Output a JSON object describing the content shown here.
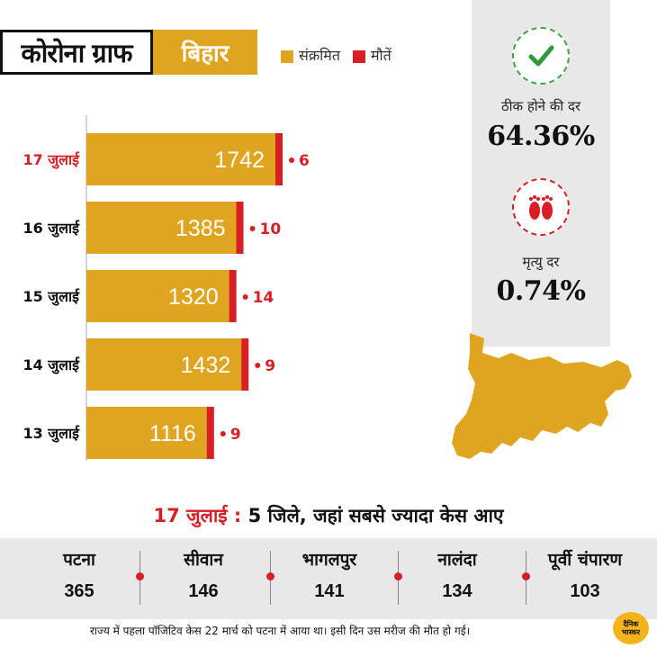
{
  "header": {
    "title": "कोरोना ग्राफ",
    "state": "बिहार",
    "legend": [
      {
        "label": "संक्रमित",
        "color": "#e0a520"
      },
      {
        "label": "मौतें",
        "color": "#d81f26"
      }
    ]
  },
  "stats": {
    "recovery_label": "ठीक होने की दर",
    "recovery_value": "64.36%",
    "death_label": "मृत्यु दर",
    "death_value": "0.74%"
  },
  "chart_data": {
    "type": "bar",
    "orientation": "horizontal",
    "title": "",
    "categories": [
      "17 जुलाई",
      "16 जुलाई",
      "15 जुलाई",
      "14 जुलाई",
      "13 जुलाई"
    ],
    "series": [
      {
        "name": "संक्रमित",
        "color": "#e0a520",
        "values": [
          1742,
          1385,
          1320,
          1432,
          1116
        ]
      },
      {
        "name": "मौतें",
        "color": "#d81f26",
        "values": [
          6,
          10,
          14,
          9,
          9
        ]
      }
    ],
    "highlight_category": "17 जुलाई",
    "highlight_color": "#d81f26",
    "xlim": [
      0,
      1742
    ]
  },
  "districts_section": {
    "date": "17 जुलाई",
    "colon": ":",
    "title": "5 जिले, जहां सबसे ज्यादा केस आए",
    "items": [
      {
        "name": "पटना",
        "value": "365"
      },
      {
        "name": "सीवान",
        "value": "146"
      },
      {
        "name": "भागलपुर",
        "value": "141"
      },
      {
        "name": "नालंदा",
        "value": "134"
      },
      {
        "name": "पूर्वी चंपारण",
        "value": "103"
      }
    ]
  },
  "footnote": "राज्य में पहला पॉजिटिव केस 22 मार्च को पटना में आया था। इसी दिन उस मरीज की मौत हो गई।",
  "logo": {
    "line1": "दैनिक",
    "line2": "भास्कर"
  }
}
